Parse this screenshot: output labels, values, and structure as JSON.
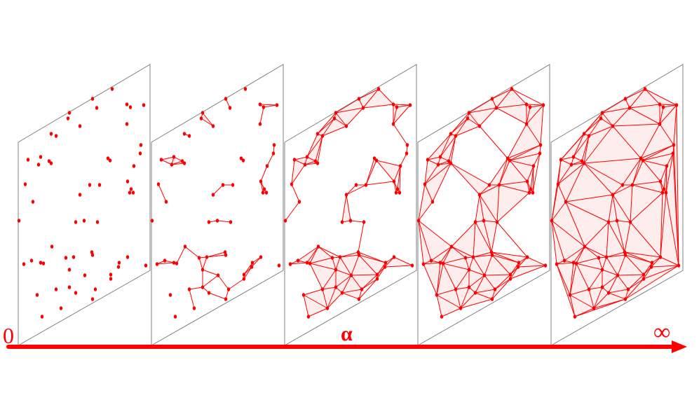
{
  "axis": {
    "start_label": "0",
    "middle_label": "α",
    "end_label": "∞"
  },
  "colors": {
    "accent": "#ff0000",
    "fill": "#fdeaea",
    "panel_border": "#808080"
  },
  "panel_count": 5
}
